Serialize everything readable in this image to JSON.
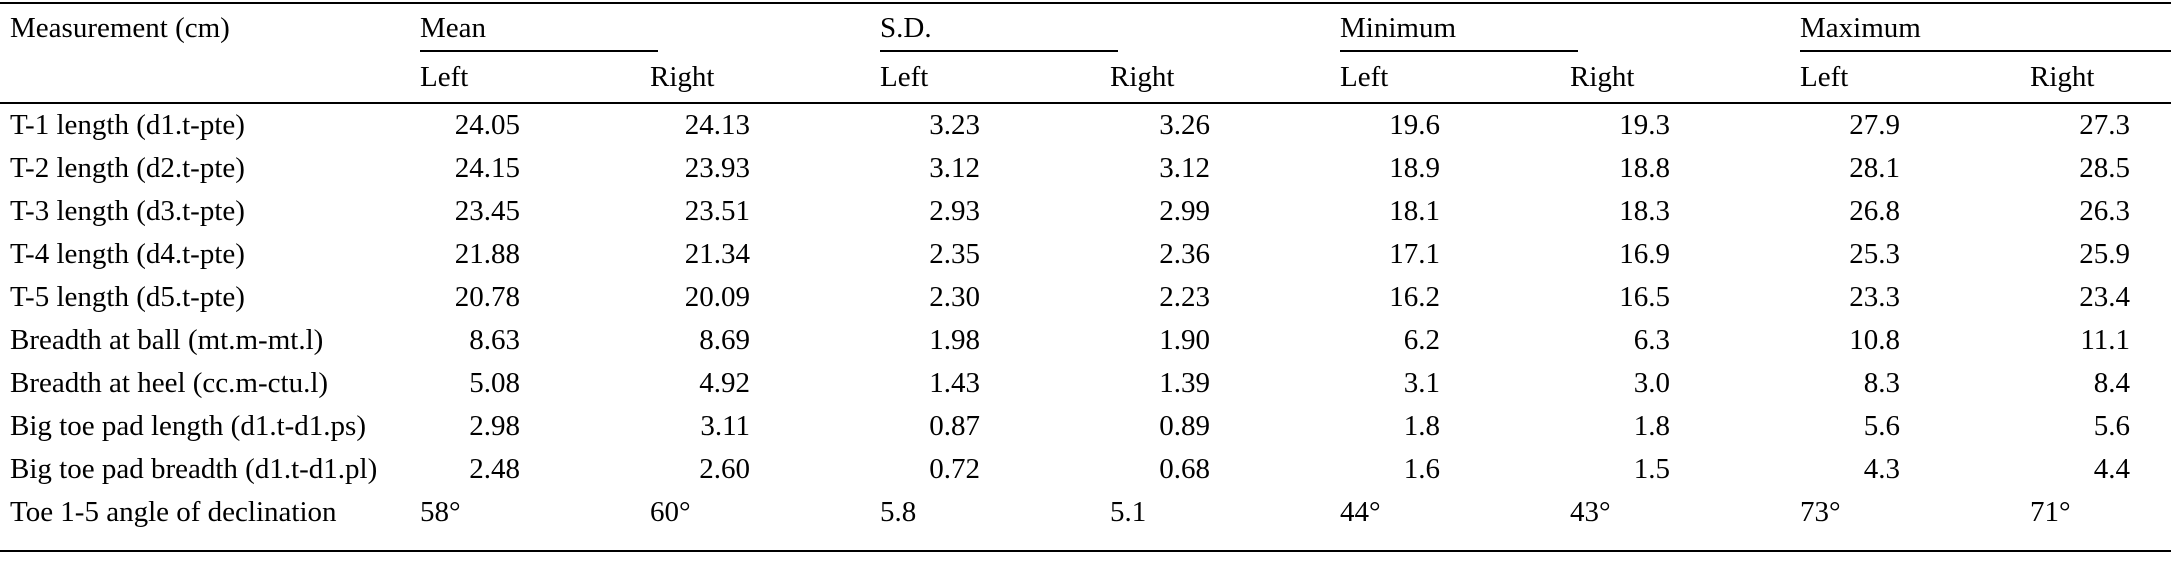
{
  "table": {
    "col1_header": "Measurement (cm)",
    "groups": [
      {
        "label": "Mean",
        "sub": [
          "Left",
          "Right"
        ]
      },
      {
        "label": "S.D.",
        "sub": [
          "Left",
          "Right"
        ]
      },
      {
        "label": "Minimum",
        "sub": [
          "Left",
          "Right"
        ]
      },
      {
        "label": "Maximum",
        "sub": [
          "Left",
          "Right"
        ]
      }
    ],
    "rows": [
      {
        "label": "T-1 length (d1.t-pte)",
        "values": [
          "24.05",
          "24.13",
          "3.23",
          "3.26",
          "19.6",
          "19.3",
          "27.9",
          "27.3"
        ]
      },
      {
        "label": "T-2 length (d2.t-pte)",
        "values": [
          "24.15",
          "23.93",
          "3.12",
          "3.12",
          "18.9",
          "18.8",
          "28.1",
          "28.5"
        ]
      },
      {
        "label": "T-3 length (d3.t-pte)",
        "values": [
          "23.45",
          "23.51",
          "2.93",
          "2.99",
          "18.1",
          "18.3",
          "26.8",
          "26.3"
        ]
      },
      {
        "label": "T-4 length (d4.t-pte)",
        "values": [
          "21.88",
          "21.34",
          "2.35",
          "2.36",
          "17.1",
          "16.9",
          "25.3",
          "25.9"
        ]
      },
      {
        "label": "T-5 length (d5.t-pte)",
        "values": [
          "20.78",
          "20.09",
          "2.30",
          "2.23",
          "16.2",
          "16.5",
          "23.3",
          "23.4"
        ]
      },
      {
        "label": "Breadth at ball (mt.m-mt.l)",
        "values": [
          "8.63",
          "8.69",
          "1.98",
          "1.90",
          "6.2",
          "6.3",
          "10.8",
          "11.1"
        ]
      },
      {
        "label": "Breadth at heel (cc.m-ctu.l)",
        "values": [
          "5.08",
          "4.92",
          "1.43",
          "1.39",
          "3.1",
          "3.0",
          "8.3",
          "8.4"
        ]
      },
      {
        "label": "Big toe pad length (d1.t-d1.ps)",
        "values": [
          "2.98",
          "3.11",
          "0.87",
          "0.89",
          "1.8",
          "1.8",
          "5.6",
          "5.6"
        ]
      },
      {
        "label": "Big toe pad breadth (d1.t-d1.pl)",
        "values": [
          "2.48",
          "2.60",
          "0.72",
          "0.68",
          "1.6",
          "1.5",
          "4.3",
          "4.4"
        ]
      },
      {
        "label": "Toe 1-5 angle of declination",
        "values": [
          "58°",
          "60°",
          "5.8",
          "5.1",
          "44°",
          "43°",
          "73°",
          "71°"
        ]
      }
    ],
    "colors": {
      "text": "#000000",
      "background": "#ffffff",
      "rule": "#000000"
    }
  }
}
